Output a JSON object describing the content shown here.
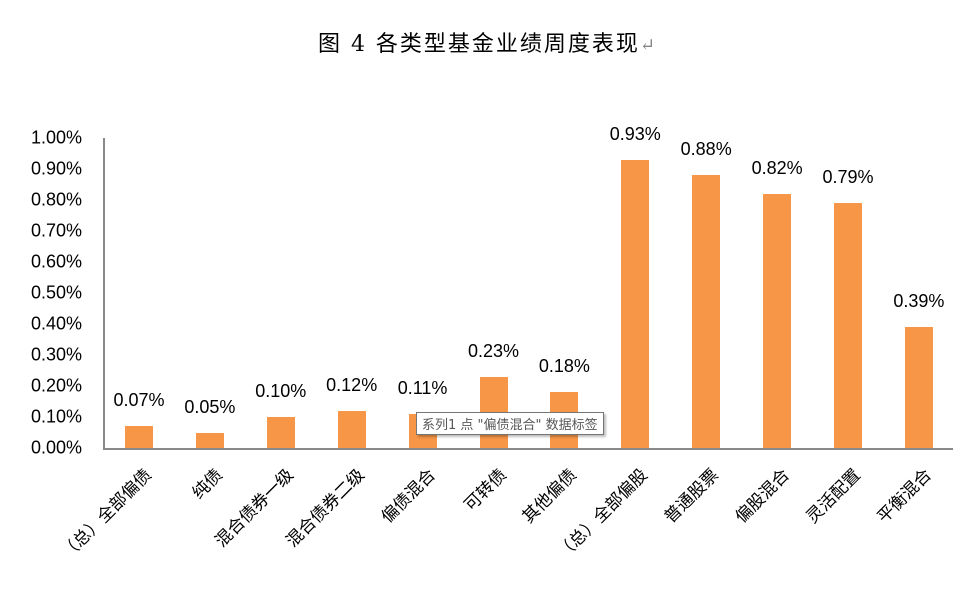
{
  "title": "图 4  各类型基金业绩周度表现",
  "title_return_mark": "↵",
  "tooltip": "系列1 点 \"偏债混合\" 数据标签",
  "colors": {
    "bar": "#f79646",
    "axis": "#898989"
  },
  "chart_data": {
    "type": "bar",
    "title": "图 4  各类型基金业绩周度表现",
    "xlabel": "",
    "ylabel": "",
    "ylim": [
      0,
      1.0
    ],
    "y_ticks": [
      "0.00%",
      "0.10%",
      "0.20%",
      "0.30%",
      "0.40%",
      "0.50%",
      "0.60%",
      "0.70%",
      "0.80%",
      "0.90%",
      "1.00%"
    ],
    "categories": [
      "（总）全部偏债",
      "纯债",
      "混合债券一级",
      "混合债券二级",
      "偏债混合",
      "可转债",
      "其他偏债",
      "（总）全部偏股",
      "普通股票",
      "偏股混合",
      "灵活配置",
      "平衡混合"
    ],
    "values": [
      0.07,
      0.05,
      0.1,
      0.12,
      0.11,
      0.23,
      0.18,
      0.93,
      0.88,
      0.82,
      0.79,
      0.39
    ],
    "value_labels": [
      "0.07%",
      "0.05%",
      "0.10%",
      "0.12%",
      "0.11%",
      "0.23%",
      "0.18%",
      "0.93%",
      "0.88%",
      "0.82%",
      "0.79%",
      "0.39%"
    ],
    "series": [
      {
        "name": "系列1",
        "values": [
          0.07,
          0.05,
          0.1,
          0.12,
          0.11,
          0.23,
          0.18,
          0.93,
          0.88,
          0.82,
          0.79,
          0.39
        ]
      }
    ],
    "grid": false,
    "legend": "none"
  }
}
